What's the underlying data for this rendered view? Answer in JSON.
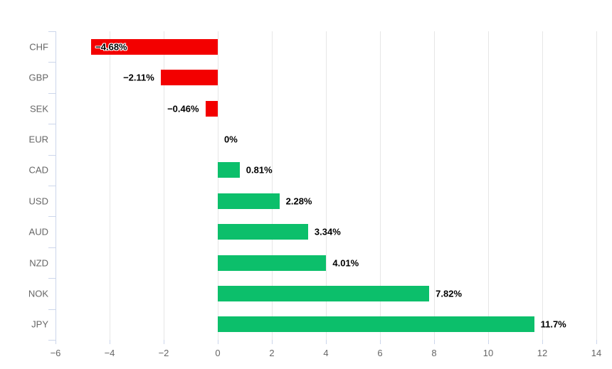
{
  "chart_data": {
    "type": "bar",
    "orientation": "horizontal",
    "title": "",
    "xlabel": "",
    "ylabel": "",
    "categories": [
      "CHF",
      "GBP",
      "SEK",
      "EUR",
      "CAD",
      "USD",
      "AUD",
      "NZD",
      "NOK",
      "JPY"
    ],
    "values": [
      -4.68,
      -2.11,
      -0.46,
      0,
      0.81,
      2.28,
      3.34,
      4.01,
      7.82,
      11.7
    ],
    "value_labels": [
      "−4.68%",
      "−2.11%",
      "−0.46%",
      "0%",
      "0.81%",
      "2.28%",
      "3.34%",
      "4.01%",
      "7.82%",
      "11.7%"
    ],
    "label_placement": [
      "inside",
      "left",
      "left",
      "right",
      "right",
      "right",
      "right",
      "right",
      "right",
      "right"
    ],
    "xlim": [
      -6,
      14
    ],
    "xticks": [
      -6,
      -4,
      -2,
      0,
      2,
      4,
      6,
      8,
      10,
      12,
      14
    ],
    "xtick_labels": [
      "−6",
      "−4",
      "−2",
      "0",
      "2",
      "4",
      "6",
      "8",
      "10",
      "12",
      "14"
    ],
    "grid": true,
    "legend": false,
    "colors": {
      "positive_bar": "#0cbf6b",
      "negative_bar": "#f30000",
      "gridline": "#e6e6e6",
      "axis_line": "#ccd6eb",
      "category_label": "#666666",
      "tick_label": "#666666",
      "value_label": "#000000",
      "background": "#ffffff"
    }
  }
}
